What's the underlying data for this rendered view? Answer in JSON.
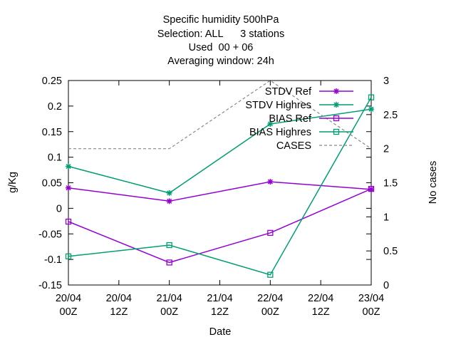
{
  "chart_data": {
    "type": "line",
    "title_lines": [
      "Specific humidity 500hPa",
      "Selection: ALL      3 stations",
      "Used  00 + 06",
      "Averaging window: 24h"
    ],
    "xlabel": "Date",
    "ylabel": "g/Kg",
    "y2label": "No cases",
    "x_ticks": [
      {
        "hour": 0,
        "line1": "20/04",
        "line2": "00Z"
      },
      {
        "hour": 12,
        "line1": "20/04",
        "line2": "12Z"
      },
      {
        "hour": 24,
        "line1": "21/04",
        "line2": "00Z"
      },
      {
        "hour": 36,
        "line1": "21/04",
        "line2": "12Z"
      },
      {
        "hour": 48,
        "line1": "22/04",
        "line2": "00Z"
      },
      {
        "hour": 60,
        "line1": "22/04",
        "line2": "12Z"
      },
      {
        "hour": 72,
        "line1": "23/04",
        "line2": "00Z"
      }
    ],
    "xlim_hours": [
      0,
      72
    ],
    "ylim": [
      -0.15,
      0.25
    ],
    "y_ticks": [
      "-0.15",
      "-0.1",
      "-0.05",
      "0",
      "0.05",
      "0.1",
      "0.15",
      "0.2",
      "0.25"
    ],
    "y2lim": [
      0,
      3
    ],
    "y2_ticks": [
      "0",
      "0.5",
      "1",
      "1.5",
      "2",
      "2.5",
      "3"
    ],
    "legend_position": "top-right",
    "series": [
      {
        "name": "STDV Ref",
        "color": "#9400d3",
        "marker": "star",
        "dash": false,
        "axis": "y1",
        "hours": [
          0,
          24,
          48,
          72
        ],
        "values": [
          0.04,
          0.014,
          0.052,
          0.037
        ]
      },
      {
        "name": "STDV Highres",
        "color": "#009e73",
        "marker": "star",
        "dash": false,
        "axis": "y1",
        "hours": [
          0,
          24,
          48,
          72
        ],
        "values": [
          0.082,
          0.03,
          0.165,
          0.194
        ]
      },
      {
        "name": "BIAS Ref",
        "color": "#9400d3",
        "marker": "square",
        "dash": false,
        "axis": "y1",
        "hours": [
          0,
          24,
          48,
          72
        ],
        "values": [
          -0.026,
          -0.106,
          -0.048,
          0.038
        ]
      },
      {
        "name": "BIAS Highres",
        "color": "#009e73",
        "marker": "square",
        "dash": false,
        "axis": "y1",
        "hours": [
          0,
          24,
          48,
          72
        ],
        "values": [
          -0.094,
          -0.072,
          -0.13,
          0.217
        ]
      },
      {
        "name": "CASES",
        "color": "#888888",
        "marker": "none",
        "dash": true,
        "axis": "y2",
        "hours": [
          0,
          24,
          48,
          72
        ],
        "values": [
          2,
          2,
          3,
          2
        ]
      }
    ]
  }
}
